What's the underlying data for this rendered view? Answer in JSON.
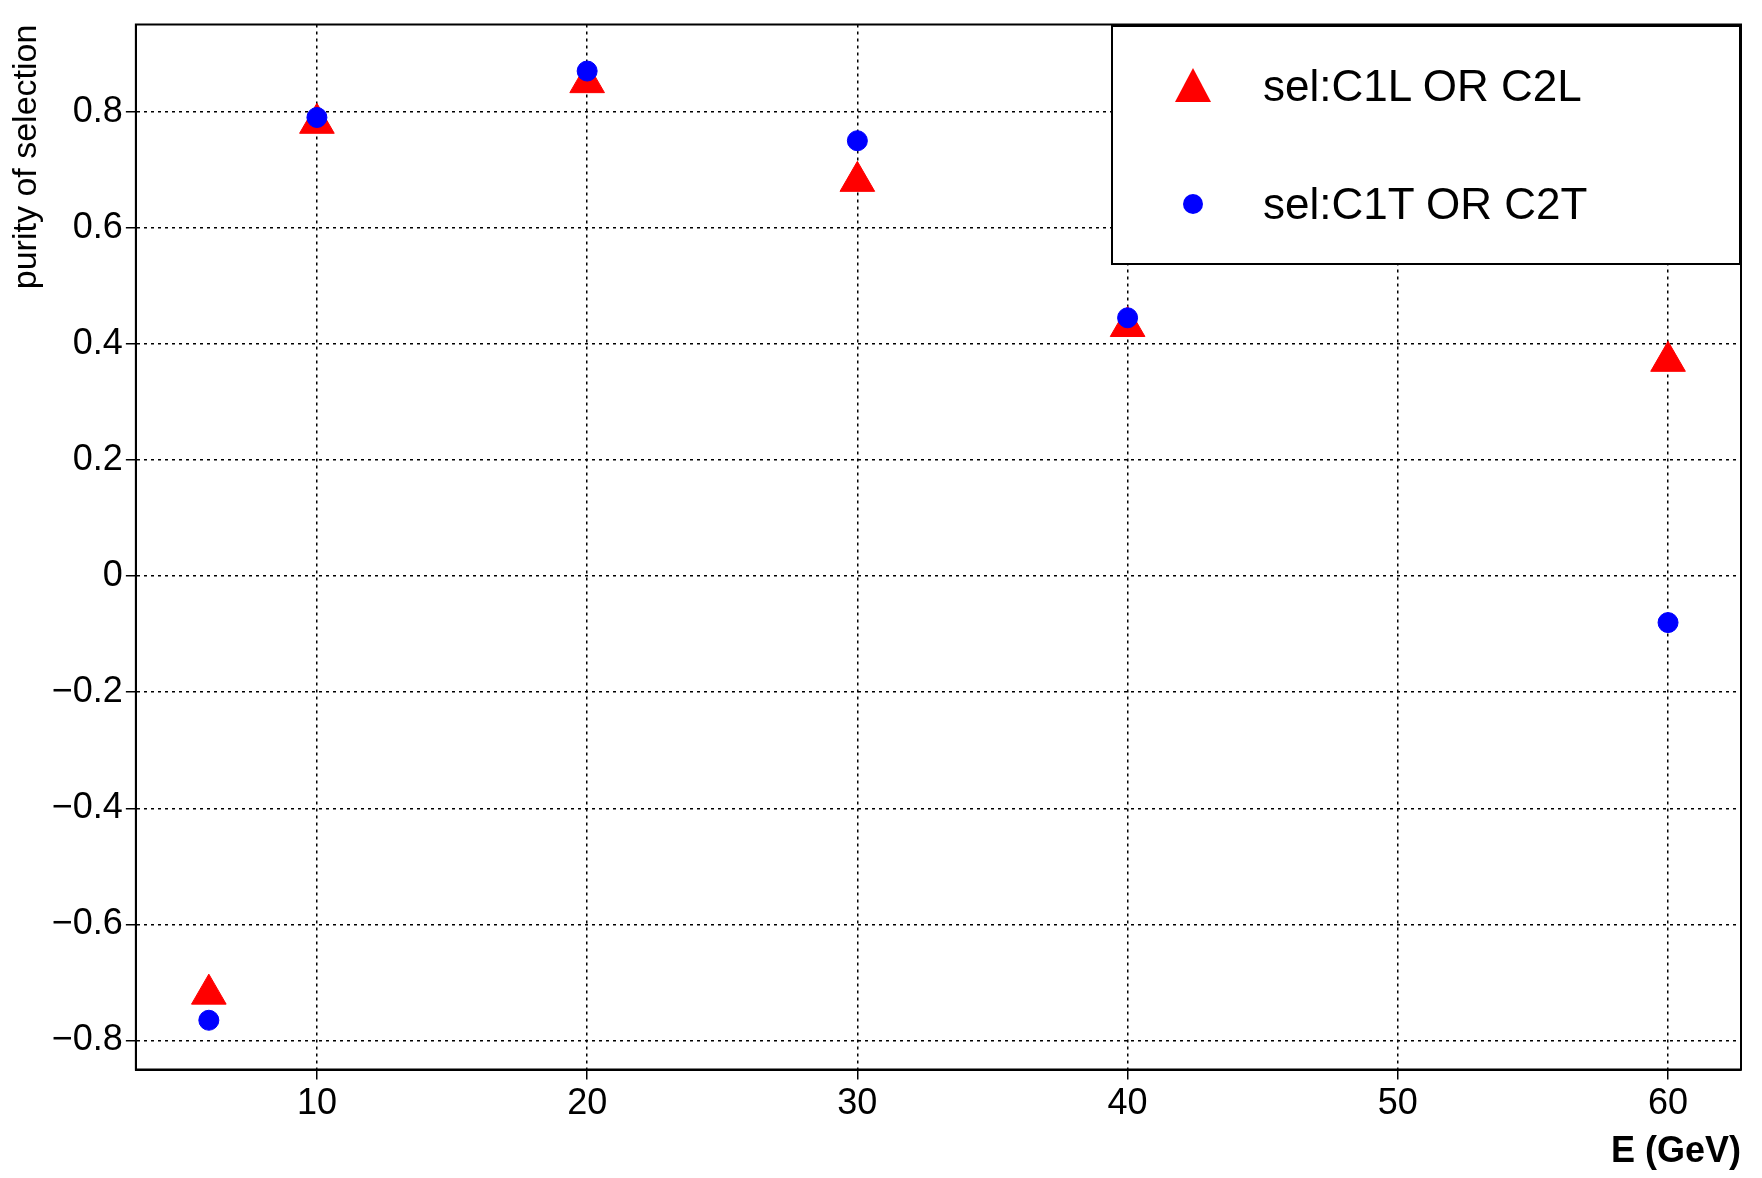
{
  "chart_data": {
    "type": "scatter",
    "xlabel": "E (GeV)",
    "ylabel": "purity of selection",
    "xlim": [
      3.3,
      62.7
    ],
    "ylim": [
      -0.85,
      0.95
    ],
    "xticks": [
      10,
      20,
      30,
      40,
      50,
      60
    ],
    "yticks": [
      {
        "value": -0.8,
        "label": "−0.8"
      },
      {
        "value": -0.6,
        "label": "−0.6"
      },
      {
        "value": -0.4,
        "label": "−0.4"
      },
      {
        "value": -0.2,
        "label": "−0.2"
      },
      0,
      0.2,
      0.4,
      0.6,
      0.8
    ],
    "grid": true,
    "legend": "top right",
    "series": [
      {
        "name": "sel:C1L OR C2L",
        "color": "#ff0000",
        "marker": "triangle",
        "x": [
          6,
          10,
          20,
          30,
          40,
          60
        ],
        "values": [
          -0.72,
          0.78,
          0.85,
          0.68,
          0.43,
          0.37
        ]
      },
      {
        "name": "sel:C1T OR C2T",
        "color": "#0000ff",
        "marker": "circle",
        "x": [
          6,
          10,
          20,
          30,
          40,
          60
        ],
        "values": [
          -0.765,
          0.79,
          0.87,
          0.75,
          0.445,
          -0.08
        ]
      }
    ]
  }
}
